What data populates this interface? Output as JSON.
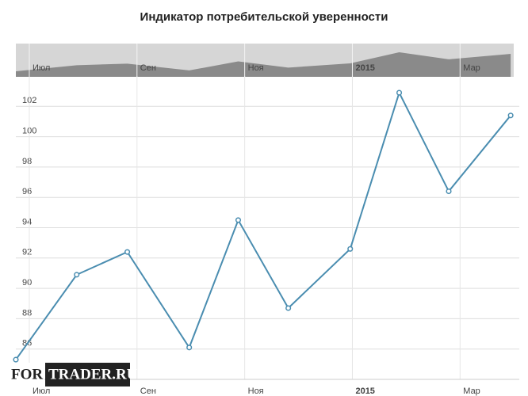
{
  "chart_data": {
    "type": "line",
    "title": "Индикатор потребительской уверенности",
    "x": [
      -0.25,
      0.88,
      1.82,
      2.97,
      3.88,
      4.81,
      5.96,
      6.87,
      7.79,
      8.94
    ],
    "series": [
      {
        "name": "Индикатор потребительской уверенности",
        "color": "#4a8db0",
        "values": [
          85.3,
          90.9,
          92.4,
          86.1,
          94.5,
          88.7,
          92.6,
          102.9,
          96.4,
          101.4
        ]
      }
    ],
    "xlim": [
      -0.25,
      9.1
    ],
    "xticks": [
      {
        "value": 0,
        "label": "Июл"
      },
      {
        "value": 2,
        "label": "Сен"
      },
      {
        "value": 4,
        "label": "Ноя"
      },
      {
        "value": 6,
        "label": "2015"
      },
      {
        "value": 8,
        "label": "Мар"
      }
    ],
    "ylim": [
      84,
      104
    ],
    "yticks": [
      86,
      88,
      90,
      92,
      94,
      96,
      98,
      100,
      102
    ],
    "grid": true,
    "watermark": [
      "FOR",
      "TRADER.RU"
    ]
  }
}
